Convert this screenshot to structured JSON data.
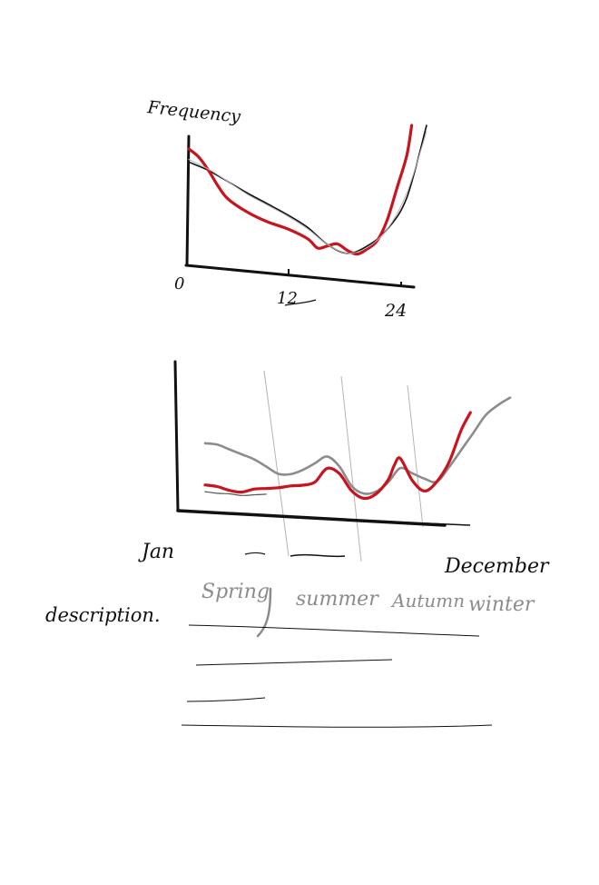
{
  "colors": {
    "ink": "#111111",
    "red": "#c8141e",
    "gray_dark": "#555555",
    "gray": "#8c8c8c",
    "gray_light": "#b4b4b4"
  },
  "chart_data": [
    {
      "type": "line",
      "ylabel": "Frequency",
      "xlabel": "",
      "x_ticks": [
        "0",
        "12",
        "24"
      ],
      "xlim": [
        0,
        24
      ],
      "ylim": [
        0,
        100
      ],
      "series": [
        {
          "color": "#111111",
          "x": [
            0,
            2,
            4,
            6,
            8,
            10,
            12,
            14,
            16,
            18,
            20,
            22,
            24
          ],
          "y": [
            72,
            66,
            58,
            50,
            43,
            36,
            28,
            17,
            12,
            18,
            30,
            52,
            100
          ]
        },
        {
          "color": "#c8141e",
          "x": [
            0,
            1,
            2,
            3,
            4,
            6,
            8,
            10,
            12,
            13,
            14,
            15,
            16,
            17,
            18,
            19,
            20,
            21,
            22,
            22.5
          ],
          "y": [
            82,
            76,
            66,
            54,
            45,
            36,
            30,
            26,
            20,
            14,
            16,
            18,
            14,
            12,
            16,
            22,
            36,
            58,
            80,
            100
          ]
        },
        {
          "color": "#b4b4b4",
          "x": [
            0,
            2,
            4,
            6,
            8,
            10,
            12,
            14,
            16,
            18,
            20,
            22,
            24
          ],
          "y": [
            74,
            67,
            58,
            49,
            42,
            35,
            27,
            17,
            12,
            17,
            30,
            55,
            96
          ]
        }
      ]
    },
    {
      "type": "line",
      "x_ticks": [
        "Jan",
        "December"
      ],
      "season_labels": [
        "Spring",
        "summer",
        "Autumn",
        "winter"
      ],
      "xlim": [
        0,
        100
      ],
      "ylim": [
        0,
        100
      ],
      "series": [
        {
          "color": "#8c8c8c",
          "x": [
            0,
            4,
            8,
            12,
            16,
            20,
            24,
            28,
            32,
            36,
            40,
            44,
            48,
            52,
            56,
            60,
            64,
            68,
            72,
            76,
            80,
            84,
            88,
            92,
            96,
            100
          ],
          "y": [
            55,
            54,
            50,
            46,
            42,
            36,
            30,
            30,
            34,
            40,
            46,
            38,
            22,
            16,
            18,
            26,
            38,
            34,
            30,
            28,
            40,
            54,
            68,
            82,
            90,
            96
          ]
        },
        {
          "color": "#c8141e",
          "x": [
            0,
            4,
            8,
            12,
            16,
            20,
            24,
            28,
            32,
            36,
            40,
            44,
            48,
            52,
            56,
            60,
            62,
            64,
            68,
            72,
            76,
            80,
            84,
            87
          ],
          "y": [
            18,
            17,
            14,
            13,
            16,
            17,
            18,
            20,
            21,
            24,
            36,
            32,
            18,
            12,
            16,
            28,
            40,
            46,
            28,
            20,
            28,
            44,
            70,
            84
          ]
        },
        {
          "color": "#555555",
          "x": [
            0,
            4,
            8,
            12,
            16,
            20
          ],
          "y": [
            12,
            11,
            11,
            10,
            11,
            12
          ]
        }
      ]
    }
  ],
  "description": {
    "label": "description."
  }
}
